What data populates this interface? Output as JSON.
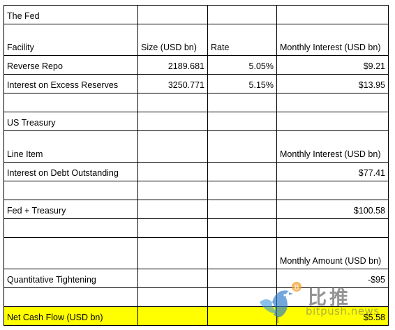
{
  "rows": [
    {
      "cells": [
        "The Fed",
        "",
        "",
        ""
      ],
      "h": 27
    },
    {
      "cells": [
        "Facility",
        "Size (USD bn)",
        "Rate",
        "Monthly Interest (USD bn)"
      ],
      "h": 45
    },
    {
      "cells": [
        "Reverse Repo",
        "2189.681",
        "5.05%",
        "$9.21"
      ],
      "h": 27
    },
    {
      "cells": [
        "Interest on Excess Reserves",
        "3250.771",
        "5.15%",
        "$13.95"
      ],
      "h": 27
    },
    {
      "cells": [
        "",
        "",
        "",
        ""
      ],
      "h": 27
    },
    {
      "cells": [
        "US Treasury",
        "",
        "",
        ""
      ],
      "h": 27
    },
    {
      "cells": [
        "Line Item",
        "",
        "",
        "Monthly Interest (USD bn)"
      ],
      "h": 45
    },
    {
      "cells": [
        "Interest on Debt Outstanding",
        "",
        "",
        "$77.41"
      ],
      "h": 27
    },
    {
      "cells": [
        "",
        "",
        "",
        ""
      ],
      "h": 27
    },
    {
      "cells": [
        "Fed + Treasury",
        "",
        "",
        "$100.58"
      ],
      "h": 27
    },
    {
      "cells": [
        "",
        "",
        "",
        ""
      ],
      "h": 27
    },
    {
      "cells": [
        "",
        "",
        "",
        "Monthly Amount (USD bn)"
      ],
      "h": 45
    },
    {
      "cells": [
        "Quantitative Tightening",
        "",
        "",
        "-$95"
      ],
      "h": 27
    },
    {
      "cells": [
        "",
        "",
        "",
        ""
      ],
      "h": 27
    },
    {
      "cells": [
        "Net Cash Flow (USD bn)",
        "",
        "",
        "$5.58"
      ],
      "h": 27,
      "highlight": true
    }
  ],
  "right_aligned": {
    "2": [
      1,
      2,
      3
    ],
    "3": [
      1,
      2,
      3
    ],
    "7": [
      3
    ],
    "9": [
      3
    ],
    "12": [
      3
    ],
    "14": [
      3
    ]
  },
  "colors": {
    "highlight": "#ffff00",
    "grid": "#000000"
  },
  "watermark": {
    "icon": "bird-logo-icon",
    "cn": "比推",
    "url": "bitpush.news"
  }
}
